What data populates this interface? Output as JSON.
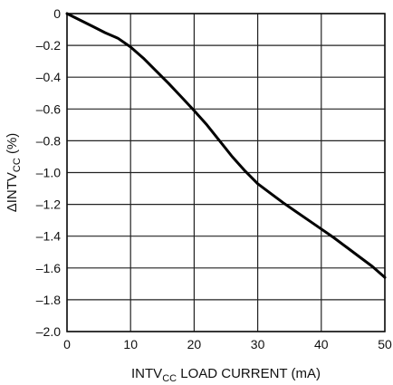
{
  "chart_data": {
    "type": "line",
    "title": "",
    "xlabel": {
      "pre": "INTV",
      "sub": "CC",
      "post": " LOAD CURRENT (mA)"
    },
    "ylabel": {
      "pre": "ΔINTV",
      "sub": "CC",
      "post": " (%)"
    },
    "xlim": [
      0,
      50
    ],
    "ylim": [
      -2.0,
      0
    ],
    "x_ticks": [
      0,
      10,
      20,
      30,
      40,
      50
    ],
    "x_tick_labels": [
      "0",
      "10",
      "20",
      "30",
      "40",
      "50"
    ],
    "y_ticks": [
      0,
      -0.2,
      -0.4,
      -0.6,
      -0.8,
      -1.0,
      -1.2,
      -1.4,
      -1.6,
      -1.8,
      -2.0
    ],
    "y_tick_labels": [
      "0",
      "–0.2",
      "–0.4",
      "–0.6",
      "–0.8",
      "–1.0",
      "–1.2",
      "–1.4",
      "–1.6",
      "–1.8",
      "–2.0"
    ],
    "grid": true,
    "series": [
      {
        "x": [
          0,
          2,
          4,
          6,
          8,
          10,
          12,
          14,
          16,
          18,
          20,
          22,
          24,
          26,
          28,
          30,
          32,
          34,
          36,
          38,
          40,
          42,
          44,
          46,
          48,
          50
        ],
        "y": [
          0,
          -0.04,
          -0.08,
          -0.12,
          -0.155,
          -0.21,
          -0.28,
          -0.36,
          -0.44,
          -0.525,
          -0.61,
          -0.7,
          -0.8,
          -0.9,
          -0.99,
          -1.07,
          -1.13,
          -1.19,
          -1.245,
          -1.3,
          -1.355,
          -1.41,
          -1.47,
          -1.53,
          -1.59,
          -1.66
        ]
      }
    ]
  }
}
